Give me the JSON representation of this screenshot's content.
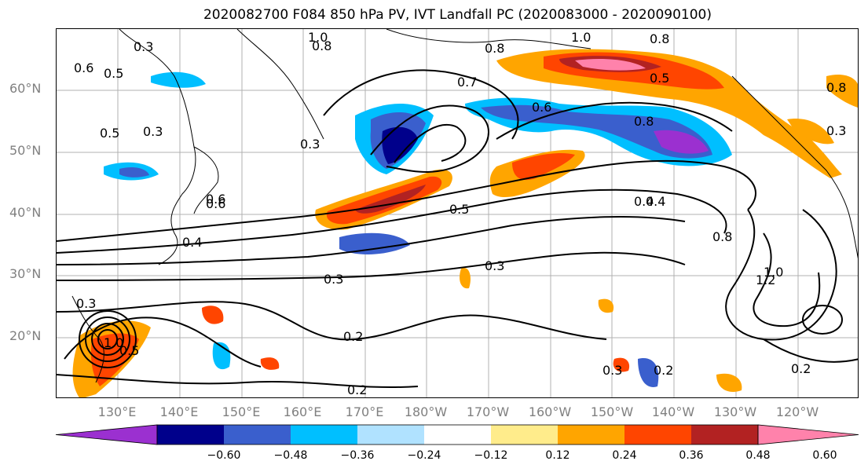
{
  "title": "2020082700 F084 850 hPa PV, IVT Landfall PC (2020083000 - 2020090100)",
  "lat_labels": [
    "60°N",
    "50°N",
    "40°N",
    "30°N",
    "20°N"
  ],
  "lon_labels": [
    "130°E",
    "140°E",
    "150°E",
    "160°E",
    "170°E",
    "180°W",
    "170°W",
    "160°W",
    "150°W",
    "140°W",
    "130°W",
    "120°W"
  ],
  "contour_labels": [
    "0.3",
    "0.6",
    "0.5",
    "0.3",
    "0.5",
    "0.3",
    "0.6",
    "1.0",
    "0.8",
    "0.8",
    "1.0",
    "0.8",
    "0.5",
    "0.7",
    "0.6",
    "0.8",
    "0.4",
    "0.5",
    "0.4",
    "0.3",
    "0.3",
    "0.2",
    "0.8",
    "1.2",
    "1.0",
    "0.3",
    "0.2",
    "0.2",
    "0.2",
    "0.3",
    "1.0",
    "0.5",
    "0.8",
    "0.3",
    "0.6",
    "0.4"
  ],
  "colorbar": {
    "colors": [
      "#9b30d0",
      "#00008b",
      "#3a5fcd",
      "#00bfff",
      "#b0e2ff",
      "#ffffff",
      "#ffec8b",
      "#ffa500",
      "#ff4500",
      "#b22222",
      "#ff82ab"
    ],
    "tick_labels": [
      "−0.60",
      "−0.48",
      "−0.36",
      "−0.24",
      "−0.12",
      "0.12",
      "0.24",
      "0.36",
      "0.48",
      "0.60"
    ]
  }
}
